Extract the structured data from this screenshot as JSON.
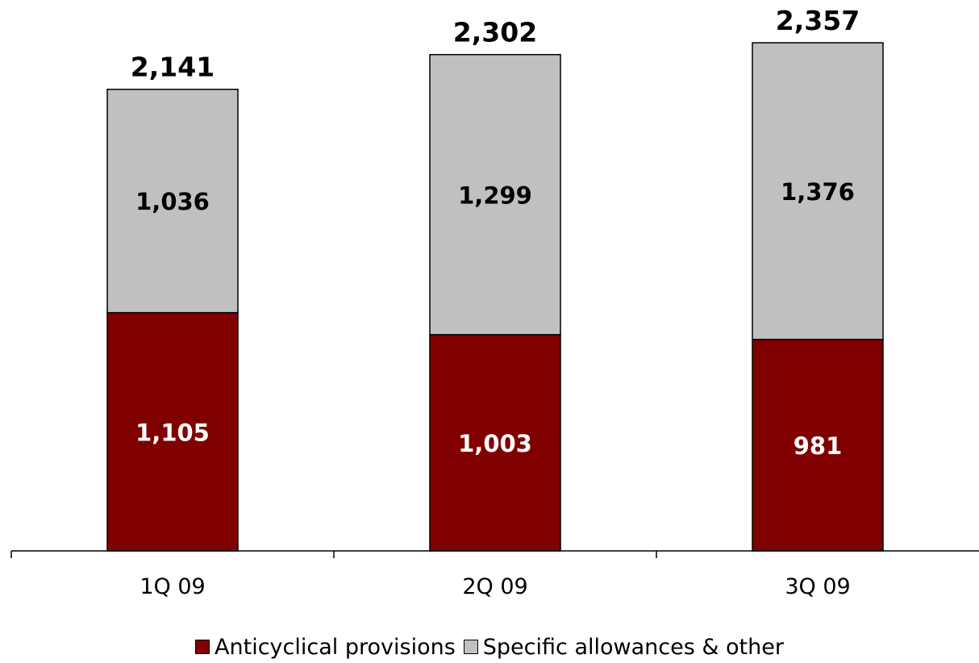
{
  "chart_data": {
    "type": "bar",
    "stacked": true,
    "categories": [
      "1Q 09",
      "2Q 09",
      "3Q 09"
    ],
    "series": [
      {
        "name": "Anticyclical provisions",
        "values": [
          1105,
          1003,
          981
        ],
        "labels": [
          "1,105",
          "1,003",
          "981"
        ],
        "color": "#800000",
        "label_color": "#ffffff"
      },
      {
        "name": "Specific allowances & other",
        "values": [
          1036,
          1299,
          1376
        ],
        "labels": [
          "1,036",
          "1,299",
          "1,376"
        ],
        "color": "#c0c0c0",
        "label_color": "#000000"
      }
    ],
    "totals": [
      2141,
      2302,
      2357
    ],
    "total_labels": [
      "2,141",
      "2,302",
      "2,357"
    ],
    "ylim": [
      0,
      2357
    ],
    "grid": false,
    "legend": "bottom-center"
  }
}
